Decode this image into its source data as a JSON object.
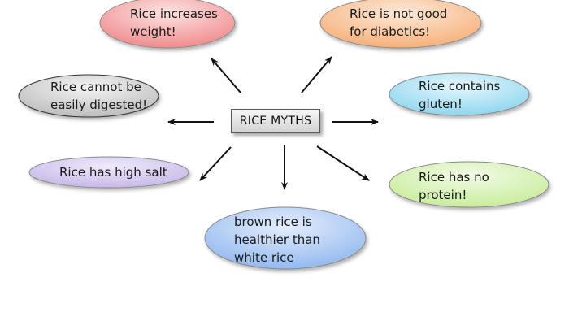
{
  "center_label": "RICE MYTHS",
  "myths": [
    {
      "line1": "Rice increases",
      "line2": "weight!",
      "line3": "",
      "color": "#f08b8d"
    },
    {
      "line1": "Rice is not good",
      "line2": "for diabetics!",
      "line3": "",
      "color": "#f6b07a"
    },
    {
      "line1": "Rice cannot be",
      "line2": "easily digested!",
      "line3": "",
      "color": "#bdbdbd"
    },
    {
      "line1": "Rice contains",
      "line2": "gluten!",
      "line3": "",
      "color": "#8fd6ef"
    },
    {
      "line1": "Rice has high salt",
      "line2": "",
      "line3": "",
      "color": "#c7b7e8"
    },
    {
      "line1": "Rice has no",
      "line2": "protein!",
      "line3": "",
      "color": "#c9ec9c"
    },
    {
      "line1": "brown rice is",
      "line2": "healthier than",
      "line3": "white rice",
      "color": "#93b9ef"
    }
  ]
}
